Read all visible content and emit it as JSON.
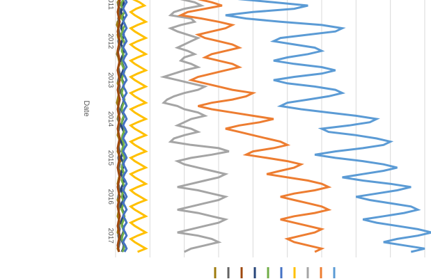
{
  "chart_data": {
    "type": "line",
    "orientation": "rotated-90-clockwise",
    "xlabel": "Date",
    "ylabel": "",
    "x_tick_labels": [
      "2011",
      "2012",
      "2013",
      "2014",
      "2015",
      "2016",
      "2017"
    ],
    "ylim": [
      0,
      450
    ],
    "grid": true,
    "legend_position": "bottom",
    "x": [
      "2010-11",
      "2010-12",
      "2011-01",
      "2011-02",
      "2011-03",
      "2011-04",
      "2011-05",
      "2011-06",
      "2011-07",
      "2011-08",
      "2011-09",
      "2011-10",
      "2011-11",
      "2011-12",
      "2012-01",
      "2012-02",
      "2012-03",
      "2012-04",
      "2012-05",
      "2012-06",
      "2012-07",
      "2012-08",
      "2012-09",
      "2012-10",
      "2012-11",
      "2012-12",
      "2013-01",
      "2013-02",
      "2013-03",
      "2013-04",
      "2013-05",
      "2013-06",
      "2013-07",
      "2013-08",
      "2013-09",
      "2013-10",
      "2013-11",
      "2013-12",
      "2014-01",
      "2014-02",
      "2014-03",
      "2014-04",
      "2014-05",
      "2014-06",
      "2014-07",
      "2014-08",
      "2014-09",
      "2014-10",
      "2014-11",
      "2014-12",
      "2015-01",
      "2015-02",
      "2015-03",
      "2015-04",
      "2015-05",
      "2015-06",
      "2015-07",
      "2015-08",
      "2015-09",
      "2015-10",
      "2015-11",
      "2015-12",
      "2016-01",
      "2016-02",
      "2016-03",
      "2016-04",
      "2016-05",
      "2016-06",
      "2016-07",
      "2016-08",
      "2016-09",
      "2016-10",
      "2016-11",
      "2016-12",
      "2017-01",
      "2017-02",
      "2017-03",
      "2017-04",
      "2017-05",
      "2017-06"
    ],
    "series": [
      {
        "color": "#9e7b0e",
        "values": [
          5,
          6,
          3,
          4,
          5,
          6,
          7,
          6,
          3,
          2,
          4,
          5,
          3,
          4,
          6,
          5,
          4,
          3,
          2,
          4,
          5,
          6,
          4,
          3,
          5,
          6,
          4,
          3,
          5,
          6,
          5,
          4,
          3,
          2,
          4,
          5,
          6,
          4,
          3,
          5,
          6,
          5,
          4,
          3,
          5,
          6,
          5,
          4,
          3,
          5,
          6,
          7,
          5,
          4,
          6,
          7,
          5,
          4,
          3,
          5,
          6,
          5,
          4,
          3,
          5,
          6,
          5,
          4,
          3,
          5,
          6,
          5,
          4,
          3,
          5,
          6,
          5,
          4,
          3,
          5
        ]
      },
      {
        "color": "#636363",
        "values": [
          6,
          7,
          5,
          4,
          6,
          7,
          5,
          4,
          5,
          6,
          4,
          5,
          6,
          5,
          4,
          5,
          6,
          4,
          3,
          5,
          6,
          5,
          4,
          5,
          6,
          5,
          4,
          5,
          6,
          5,
          4,
          5,
          6,
          5,
          4,
          5,
          6,
          5,
          4,
          5,
          6,
          5,
          4,
          5,
          6,
          5,
          4,
          5,
          6,
          5,
          4,
          5,
          6,
          5,
          4,
          5,
          6,
          5,
          4,
          5,
          6,
          5,
          4,
          5,
          6,
          5,
          4,
          5,
          6,
          5,
          4,
          5,
          6,
          5,
          4,
          5,
          6,
          5,
          4,
          5
        ]
      },
      {
        "color": "#9e480e",
        "values": [
          4,
          5,
          6,
          5,
          4,
          3,
          4,
          5,
          6,
          5,
          4,
          3,
          4,
          5,
          6,
          5,
          4,
          3,
          4,
          5,
          6,
          5,
          4,
          3,
          4,
          5,
          6,
          5,
          4,
          3,
          4,
          5,
          6,
          5,
          4,
          3,
          4,
          5,
          6,
          5,
          4,
          3,
          4,
          5,
          6,
          5,
          4,
          3,
          4,
          5,
          6,
          5,
          4,
          3,
          4,
          5,
          6,
          5,
          4,
          3,
          4,
          5,
          6,
          5,
          4,
          3,
          4,
          5,
          6,
          5,
          4,
          3,
          4,
          5,
          6,
          5,
          4,
          3,
          4,
          5
        ]
      },
      {
        "color": "#264478",
        "values": [
          8,
          10,
          12,
          11,
          9,
          8,
          10,
          12,
          11,
          9,
          8,
          10,
          12,
          11,
          9,
          8,
          10,
          12,
          11,
          9,
          8,
          10,
          12,
          11,
          9,
          8,
          10,
          12,
          11,
          9,
          8,
          10,
          12,
          11,
          9,
          8,
          10,
          12,
          11,
          9,
          8,
          10,
          12,
          11,
          9,
          8,
          10,
          12,
          11,
          9,
          8,
          10,
          12,
          11,
          9,
          8,
          10,
          12,
          11,
          9,
          8,
          10,
          12,
          11,
          9,
          8,
          10,
          12,
          11,
          9,
          8,
          10,
          12,
          11,
          9,
          8,
          10,
          12,
          11,
          9
        ]
      },
      {
        "color": "#70ad47",
        "values": [
          10,
          12,
          9,
          8,
          11,
          13,
          10,
          9,
          12,
          14,
          11,
          10,
          8,
          9,
          12,
          13,
          10,
          9,
          11,
          12,
          10,
          9,
          11,
          13,
          12,
          10,
          9,
          11,
          12,
          10,
          9,
          11,
          13,
          12,
          10,
          9,
          11,
          12,
          10,
          9,
          11,
          13,
          12,
          10,
          9,
          11,
          12,
          10,
          9,
          11,
          13,
          12,
          10,
          9,
          11,
          12,
          10,
          9,
          11,
          13,
          12,
          10,
          9,
          11,
          12,
          10,
          9,
          11,
          13,
          12,
          10,
          9,
          11,
          12,
          10,
          9,
          11,
          13,
          12,
          10
        ]
      },
      {
        "color": "#4472c4",
        "values": [
          12,
          14,
          16,
          13,
          11,
          14,
          16,
          13,
          11,
          14,
          16,
          13,
          11,
          14,
          16,
          13,
          11,
          14,
          16,
          13,
          11,
          14,
          16,
          13,
          11,
          14,
          16,
          13,
          11,
          14,
          16,
          13,
          11,
          14,
          16,
          13,
          11,
          14,
          16,
          13,
          11,
          14,
          16,
          13,
          11,
          14,
          16,
          13,
          11,
          14,
          16,
          13,
          11,
          14,
          16,
          13,
          11,
          14,
          16,
          13,
          11,
          14,
          16,
          13,
          11,
          14,
          16,
          13,
          11,
          14,
          16,
          13,
          11,
          14,
          16,
          13,
          11,
          14,
          16,
          13
        ]
      },
      {
        "color": "#ffc000",
        "values": [
          20,
          25,
          35,
          42,
          30,
          22,
          28,
          36,
          44,
          32,
          22,
          28,
          36,
          44,
          32,
          22,
          28,
          36,
          44,
          32,
          22,
          28,
          36,
          44,
          32,
          22,
          28,
          36,
          44,
          32,
          22,
          28,
          36,
          44,
          32,
          22,
          28,
          36,
          44,
          32,
          22,
          28,
          36,
          44,
          32,
          22,
          28,
          36,
          44,
          32,
          22,
          28,
          36,
          44,
          32,
          22,
          28,
          36,
          44,
          32,
          22,
          28,
          36,
          44,
          32,
          22,
          28,
          36,
          44,
          32,
          22,
          28,
          36,
          44,
          32,
          22,
          28,
          36,
          44,
          32
        ]
      },
      {
        "color": "#a5a5a5",
        "values": [
          90,
          95,
          115,
          125,
          100,
          85,
          80,
          110,
          115,
          95,
          80,
          90,
          105,
          120,
          110,
          100,
          90,
          105,
          115,
          100,
          95,
          110,
          120,
          100,
          85,
          70,
          90,
          110,
          130,
          120,
          100,
          85,
          75,
          70,
          90,
          100,
          120,
          130,
          110,
          100,
          90,
          110,
          120,
          100,
          85,
          80,
          110,
          150,
          165,
          140,
          110,
          90,
          100,
          120,
          140,
          160,
          150,
          130,
          110,
          90,
          120,
          140,
          160,
          150,
          130,
          110,
          90,
          120,
          140,
          160,
          150,
          130,
          110,
          90,
          120,
          140,
          150,
          130,
          110,
          100
        ]
      },
      {
        "color": "#ed7d31",
        "values": [
          100,
          120,
          140,
          155,
          130,
          105,
          95,
          125,
          150,
          170,
          160,
          140,
          120,
          130,
          150,
          170,
          180,
          160,
          140,
          130,
          150,
          170,
          180,
          160,
          140,
          120,
          110,
          130,
          150,
          170,
          200,
          190,
          170,
          140,
          120,
          140,
          170,
          200,
          230,
          210,
          180,
          160,
          180,
          200,
          220,
          240,
          250,
          230,
          200,
          190,
          220,
          250,
          270,
          260,
          240,
          220,
          250,
          280,
          300,
          310,
          290,
          260,
          240,
          260,
          280,
          300,
          310,
          290,
          260,
          240,
          260,
          280,
          300,
          290,
          270,
          250,
          260,
          280,
          300,
          290
        ]
      },
      {
        "color": "#5b9bd5",
        "values": [
          130,
          180,
          230,
          280,
          260,
          200,
          160,
          190,
          240,
          300,
          330,
          320,
          280,
          240,
          230,
          260,
          290,
          300,
          280,
          250,
          230,
          260,
          300,
          320,
          300,
          260,
          230,
          250,
          290,
          320,
          330,
          310,
          280,
          250,
          240,
          270,
          310,
          350,
          380,
          370,
          340,
          300,
          310,
          350,
          380,
          400,
          390,
          360,
          320,
          290,
          320,
          360,
          390,
          410,
          390,
          360,
          330,
          360,
          400,
          430,
          410,
          380,
          350,
          370,
          400,
          430,
          440,
          420,
          390,
          360,
          380,
          410,
          440,
          460,
          440,
          410,
          390,
          420,
          450,
          430
        ]
      }
    ]
  }
}
